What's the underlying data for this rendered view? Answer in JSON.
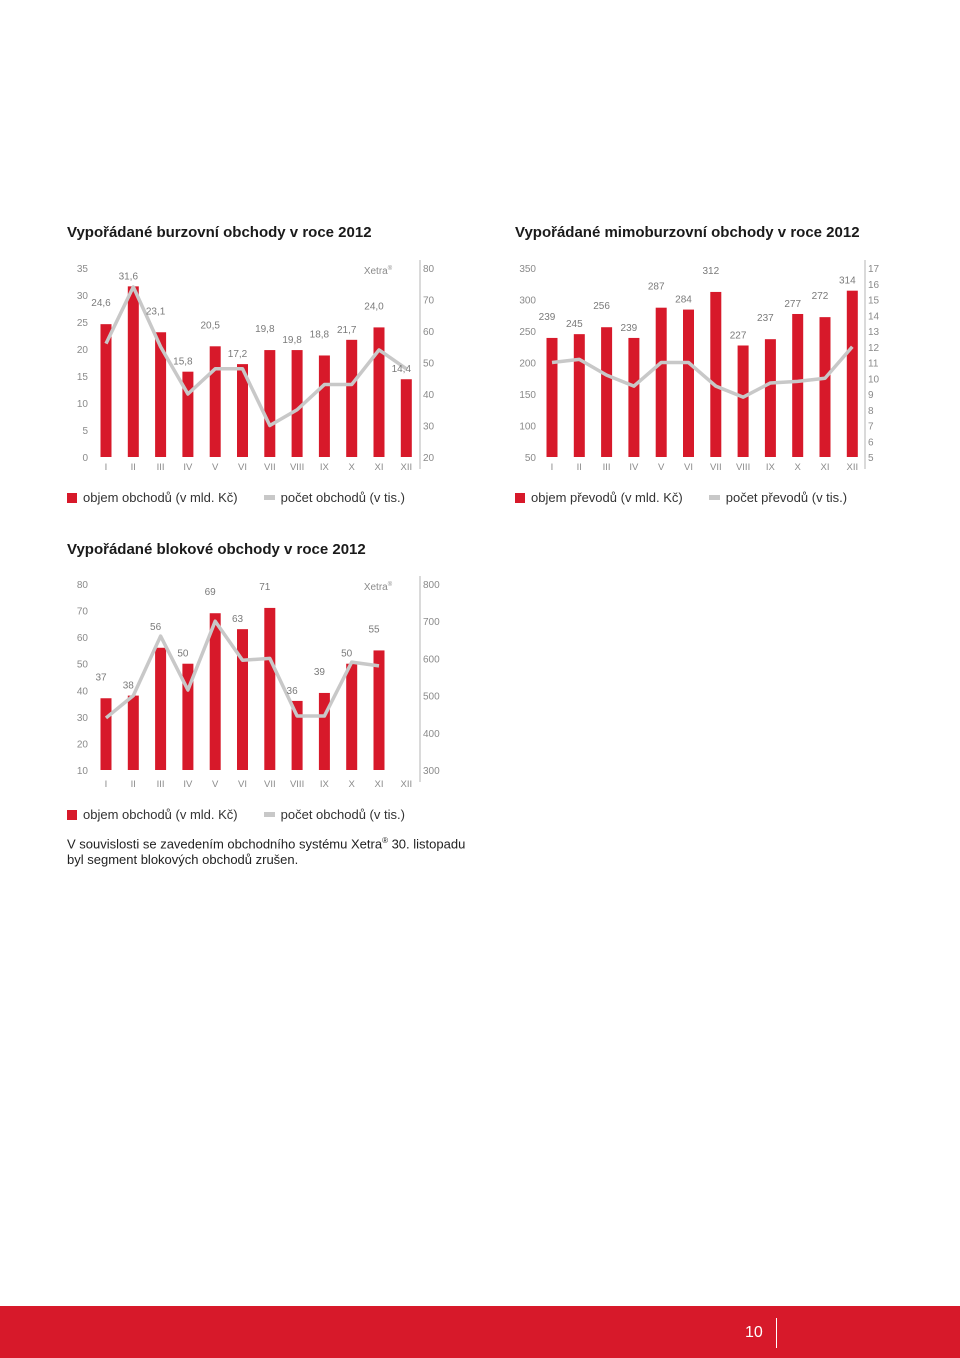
{
  "colors": {
    "bar": "#d7192a",
    "line": "#c8c8c8",
    "axis": "#b4b4b4",
    "footer": "#d7192a"
  },
  "months": [
    "I",
    "II",
    "III",
    "IV",
    "V",
    "VI",
    "VII",
    "VIII",
    "IX",
    "X",
    "XI",
    "XII"
  ],
  "chart_data": [
    {
      "type": "bar",
      "title": "Vypořádané burzovní obchody v roce 2012",
      "categories": [
        "I",
        "II",
        "III",
        "IV",
        "V",
        "VI",
        "VII",
        "VIII",
        "IX",
        "X",
        "XI",
        "XII"
      ],
      "series": [
        {
          "name": "objem obchodů (v mld. Kč)",
          "axis": "left",
          "values": [
            24.6,
            31.6,
            23.1,
            15.8,
            20.5,
            17.2,
            19.8,
            19.8,
            18.8,
            21.7,
            24.0,
            14.4
          ],
          "labels": [
            "24,6",
            "31,6",
            "23,1",
            "15,8",
            "20,5",
            "17,2",
            "19,8",
            "19,8",
            "18,8",
            "21,7",
            "24,0",
            "14,4"
          ]
        },
        {
          "name": "počet obchodů (v tis.)",
          "type": "line",
          "axis": "right",
          "values": [
            56,
            74,
            55,
            40,
            48,
            48,
            30,
            35,
            43,
            43,
            54,
            48
          ]
        }
      ],
      "ylim_left": [
        0,
        35
      ],
      "ticks_left": [
        "0",
        "5",
        "10",
        "15",
        "20",
        "25",
        "30",
        "35"
      ],
      "ylim_right": [
        20,
        80
      ],
      "ticks_right": [
        "20",
        "30",
        "40",
        "50",
        "60",
        "70",
        "80"
      ],
      "annotation": "Xetra®"
    },
    {
      "type": "bar",
      "title": "Vypořádané mimoburzovní obchody v roce 2012",
      "categories": [
        "I",
        "II",
        "III",
        "IV",
        "V",
        "VI",
        "VII",
        "VIII",
        "IX",
        "X",
        "XI",
        "XII"
      ],
      "series": [
        {
          "name": "objem převodů (v mld. Kč)",
          "axis": "left",
          "values": [
            239,
            245,
            256,
            239,
            287,
            284,
            312,
            227,
            237,
            277,
            272,
            314
          ],
          "labels": [
            "239",
            "245",
            "256",
            "239",
            "287",
            "284",
            "312",
            "227",
            "237",
            "277",
            "272",
            "314"
          ]
        },
        {
          "name": "počet převodů (v tis.)",
          "type": "line",
          "axis": "right",
          "values": [
            11.0,
            11.2,
            10.2,
            9.5,
            11.0,
            11.0,
            9.5,
            8.8,
            9.7,
            9.8,
            10.0,
            12.0
          ]
        }
      ],
      "ylim_left": [
        50,
        350
      ],
      "ticks_left": [
        "50",
        "100",
        "150",
        "200",
        "250",
        "300",
        "350"
      ],
      "ylim_right": [
        5,
        17
      ],
      "ticks_right": [
        "5",
        "6",
        "7",
        "8",
        "9",
        "10",
        "11",
        "12",
        "13",
        "14",
        "15",
        "16",
        "17"
      ]
    },
    {
      "type": "bar",
      "title": "Vypořádané blokové obchody v roce 2012",
      "categories": [
        "I",
        "II",
        "III",
        "IV",
        "V",
        "VI",
        "VII",
        "VIII",
        "IX",
        "X",
        "XI",
        "XII"
      ],
      "series": [
        {
          "name": "objem obchodů (v mld. Kč)",
          "axis": "left",
          "values": [
            37,
            38,
            56,
            50,
            69,
            63,
            71,
            36,
            39,
            50,
            55,
            null
          ],
          "labels": [
            "37",
            "38",
            "56",
            "50",
            "69",
            "63",
            "71",
            "36",
            "39",
            "50",
            "55",
            ""
          ]
        },
        {
          "name": "počet obchodů (v tis.)",
          "type": "line",
          "axis": "right",
          "values": [
            440,
            500,
            660,
            515,
            700,
            595,
            600,
            445,
            445,
            590,
            580,
            null
          ]
        }
      ],
      "ylim_left": [
        10,
        80
      ],
      "ticks_left": [
        "10",
        "20",
        "30",
        "40",
        "50",
        "60",
        "70",
        "80"
      ],
      "ylim_right": [
        300,
        800
      ],
      "ticks_right": [
        "300",
        "400",
        "500",
        "600",
        "700",
        "800"
      ],
      "annotation": "Xetra®"
    }
  ],
  "charts": {
    "c1": {
      "title": "Vypořádané burzovní obchody v roce 2012",
      "xetra": "Xetra"
    },
    "c2": {
      "title": "Vypořádané mimoburzovní obchody v roce 2012"
    },
    "c3": {
      "title": "Vypořádané blokové obchody v roce 2012",
      "xetra": "Xetra"
    }
  },
  "legends": {
    "c1": {
      "bar": "objem obchodů (v mld. Kč)",
      "line": "počet obchodů (v tis.)"
    },
    "c2": {
      "bar": "objem převodů (v mld. Kč)",
      "line": "počet převodů (v tis.)"
    },
    "c3": {
      "bar": "objem obchodů (v mld. Kč)",
      "line": "počet obchodů (v tis.)"
    }
  },
  "note": {
    "part1": "V souvislosti se zavedením obchodního systému Xetra",
    "reg": "®",
    "part2": " 30. listopadu byl segment blokových obchodů zrušen."
  },
  "page_number": "10"
}
